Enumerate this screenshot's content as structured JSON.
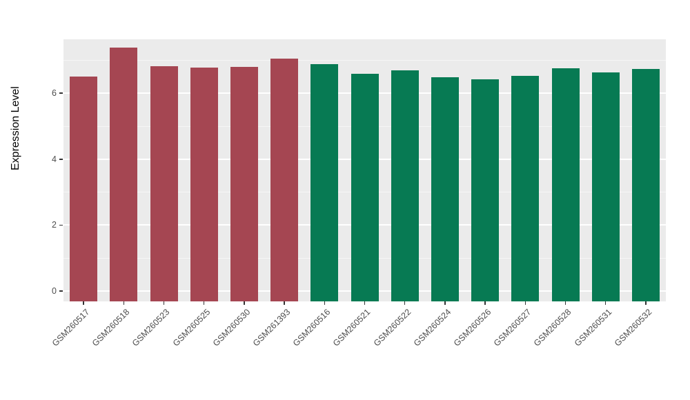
{
  "chart_data": {
    "type": "bar",
    "title": "",
    "xlabel": "",
    "ylabel": "Expression Level",
    "categories": [
      "GSM260517",
      "GSM260518",
      "GSM260523",
      "GSM260525",
      "GSM260530",
      "GSM261393",
      "GSM260516",
      "GSM260521",
      "GSM260522",
      "GSM260524",
      "GSM260526",
      "GSM260527",
      "GSM260528",
      "GSM260531",
      "GSM260532"
    ],
    "values": [
      6.5,
      7.38,
      6.82,
      6.78,
      6.8,
      7.05,
      6.88,
      6.6,
      6.7,
      6.48,
      6.42,
      6.52,
      6.76,
      6.63,
      6.73
    ],
    "bar_groups": [
      "red",
      "red",
      "red",
      "red",
      "red",
      "red",
      "green",
      "green",
      "green",
      "green",
      "green",
      "green",
      "green",
      "green",
      "green"
    ],
    "group_colors": {
      "red": "#A54652",
      "green": "#077A53"
    },
    "yticks": [
      0,
      2,
      4,
      6
    ],
    "yticks_minor": [
      1,
      3,
      5,
      7
    ],
    "ylim": [
      -0.4,
      7.8
    ],
    "grid": "on",
    "legend": "none",
    "panel_background": "#EBEBEB",
    "gridline_color": "#ffffff",
    "tick_label_color": "#4D4D4D"
  }
}
